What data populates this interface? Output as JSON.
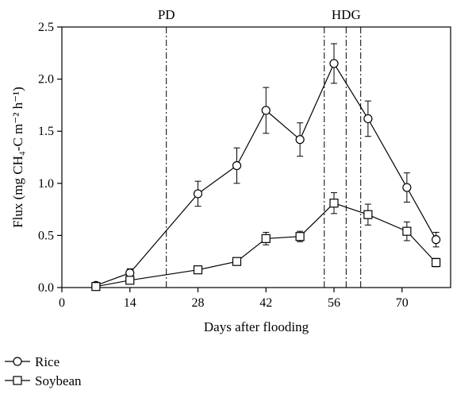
{
  "chart_data": {
    "type": "line",
    "xlabel": "Days after flooding",
    "ylabel": "Flux (mg CH₄-C m⁻² h⁻¹)",
    "xlim": [
      0,
      80
    ],
    "ylim": [
      0,
      2.5
    ],
    "xticks": [
      0,
      14,
      28,
      42,
      56,
      70
    ],
    "yticks": [
      "0.0",
      "0.5",
      "1.0",
      "1.5",
      "2.0",
      "2.5"
    ],
    "grid": false,
    "legend_position": "bottom-left",
    "vlines": [
      {
        "x": 21.5,
        "label": "PD"
      },
      {
        "x": 54,
        "label": ""
      },
      {
        "x": 58.5,
        "label": "HDG"
      },
      {
        "x": 61.5,
        "label": ""
      }
    ],
    "series": [
      {
        "name": "Rice",
        "marker": "circle",
        "x": [
          7,
          14,
          28,
          36,
          42,
          49,
          56,
          63,
          71,
          77
        ],
        "y": [
          0.02,
          0.14,
          0.9,
          1.17,
          1.7,
          1.42,
          2.15,
          1.62,
          0.96,
          0.46
        ],
        "err": [
          0.02,
          0.04,
          0.12,
          0.17,
          0.22,
          0.16,
          0.19,
          0.17,
          0.14,
          0.07
        ]
      },
      {
        "name": "Soybean",
        "marker": "square",
        "x": [
          7,
          14,
          28,
          36,
          42,
          49,
          56,
          63,
          71,
          77
        ],
        "y": [
          0.01,
          0.07,
          0.17,
          0.25,
          0.47,
          0.49,
          0.81,
          0.7,
          0.54,
          0.24
        ],
        "err": [
          0.01,
          0.02,
          0.03,
          0.03,
          0.06,
          0.05,
          0.1,
          0.1,
          0.09,
          0.04
        ]
      }
    ]
  }
}
